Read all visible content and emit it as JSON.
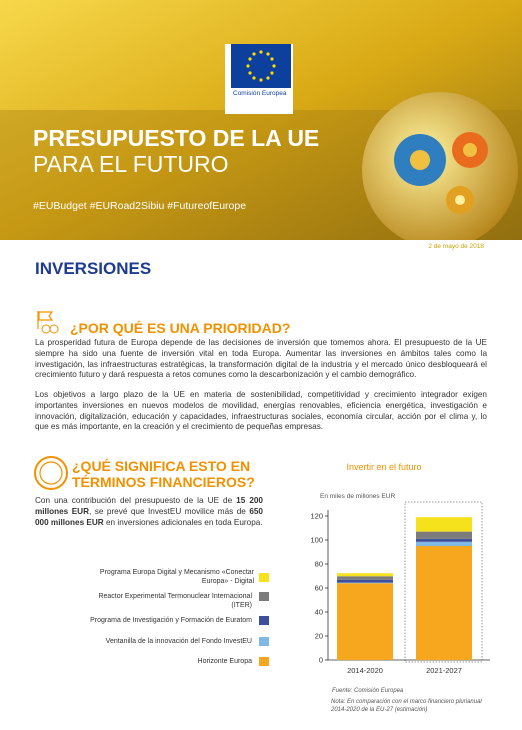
{
  "header": {
    "logo_text": "Comisión Europea",
    "title": [
      "PRESUPUESTO DE LA UE",
      "PARA EL FUTURO"
    ],
    "hashtags": "#EUBudget #EURoad2Sibiu #FutureofEurope",
    "date": "2 de mayo de 2018"
  },
  "section_title": "INVERSIONES",
  "why": {
    "heading": "¿POR QUÉ ES UNA PRIORIDAD?",
    "paragraphs": [
      "La prosperidad futura de Europa depende de las decisiones de inversión que tomemos ahora. El presupuesto de la UE siempre ha sido una fuente de inversión vital en toda Europa. Aumentar las inversiones en ámbitos tales como la investigación, las infraestructuras estratégicas, la transformación digital de la industria y el mercado único desbloqueará el crecimiento futuro y dará respuesta a retos comunes como la descarbonización y el cambio demográfico.",
      "Los objetivos a largo plazo de la UE en materia de sostenibilidad, competitividad y crecimiento integrador exigen importantes inversiones en nuevos modelos de movilidad, energías renovables, eficiencia energética, investigación e innovación, digitalización, educación y capacidades, infraestructuras sociales, economía circular, acción por el clima y, lo que es más importante, en la creación y el crecimiento de pequeñas empresas."
    ]
  },
  "financial": {
    "heading": "¿QUÉ SIGNIFICA ESTO EN TÉRMINOS FINANCIEROS?",
    "runs": [
      {
        "text": "Con una contribución del presupuesto de la UE de ",
        "bold": false
      },
      {
        "text": "15 200 millones EUR",
        "bold": true
      },
      {
        "text": ", se prevé que InvestEU movilice más de ",
        "bold": false
      },
      {
        "text": "650 000 millones EUR",
        "bold": true
      },
      {
        "text": " en inversiones adicionales en toda Europa.",
        "bold": false
      }
    ]
  },
  "chart_data": {
    "type": "stacked_bar",
    "title": "Invertir en el futuro",
    "ylabel": "En miles de millones EUR",
    "categories": [
      "2014-2020",
      "2021-2027"
    ],
    "series": [
      {
        "name": "Programa Europa Digital y Mecanismo «Conectar Europa» - Digital",
        "color": "#f5e11c",
        "values": [
          2.5,
          12
        ]
      },
      {
        "name": "Reactor Experimental Termonuclear Internacional (ITER)",
        "color": "#7b7b7b",
        "values": [
          2.9,
          6.1
        ]
      },
      {
        "name": "Programa de Investigación y Formación de Euratom",
        "color": "#3e4f9c",
        "values": [
          2.4,
          2.4
        ]
      },
      {
        "name": "Ventanilla de la innovación del Fondo InvestEU",
        "color": "#80b9e6",
        "values": [
          0.5,
          3.5
        ]
      },
      {
        "name": "Horizonte Europa",
        "color": "#f6a71e",
        "values": [
          64,
          95
        ]
      }
    ],
    "ylim": [
      0,
      120
    ],
    "yticks": [
      0,
      20,
      40,
      60,
      80,
      100,
      120
    ],
    "source": "Fuente: Comisión Europea",
    "note": "Nota: En comparación con el marco financiero plurianual 2014-2020 de la EU-27 (estimación)"
  }
}
